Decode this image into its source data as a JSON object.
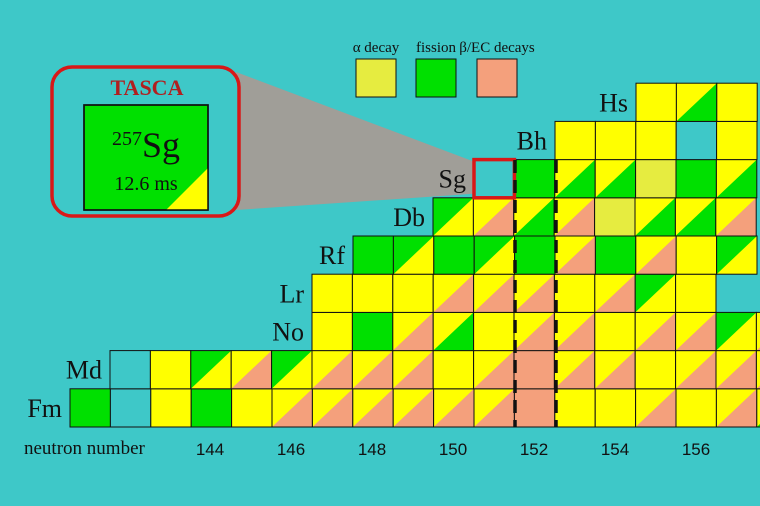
{
  "colors": {
    "background": "#3ec8c8",
    "alpha": "#ffff00",
    "fission": "#00e000",
    "beta_ec": "#f4a07c",
    "empty": "#3ec8c8",
    "light_alpha": "#e6ec40",
    "highlight": "#d81818",
    "zoom": "#a89a94"
  },
  "legend": [
    {
      "key": "alpha",
      "label": "α decay",
      "swatch": "light_alpha"
    },
    {
      "key": "fission",
      "label": "fission",
      "swatch": "fission"
    },
    {
      "key": "beta",
      "label": "β/EC decays",
      "swatch": "beta_ec"
    }
  ],
  "axis": {
    "label": "neutron number",
    "ticks": [
      "144",
      "146",
      "148",
      "150",
      "152",
      "154",
      "156"
    ]
  },
  "elements": [
    "Fm",
    "Md",
    "No",
    "Lr",
    "Rf",
    "Db",
    "Sg",
    "Bh",
    "Hs"
  ],
  "callout": {
    "facility": "TASCA",
    "mass": "257",
    "symbol": "Sg",
    "halflife": "12.6 ms"
  },
  "rows": [
    {
      "element": "Fm",
      "cells": [
        "G",
        "E",
        "Y",
        "G",
        "Y",
        "Y/O",
        "Y/O",
        "Y/O",
        "Y/O",
        "Y/O",
        "Y/O",
        "O",
        "Y",
        "Y",
        "Y/O",
        "Y",
        "Y/O",
        "Y/G"
      ]
    },
    {
      "element": "Md",
      "cells": [
        "E",
        "Y",
        "G/Y",
        "Y/O",
        "G/Y",
        "Y/O",
        "Y/O",
        "Y/O",
        "Y",
        "Y/O",
        "O",
        "Y/O",
        "Y/O",
        "Y",
        "Y/O",
        "Y/O",
        "Y/O"
      ]
    },
    {
      "element": "No",
      "cells": [
        "Y",
        "G",
        "Y/O",
        "Y/G",
        "Y",
        "Y/O",
        "Y/O",
        "Y",
        "Y/O",
        "Y/O",
        "G/Y",
        "Y/O"
      ]
    },
    {
      "element": "Lr",
      "cells": [
        "Y",
        "Y",
        "Y",
        "Y/O",
        "Y/O",
        "Y/O",
        "Y",
        "Y/O",
        "G/Y",
        "Y"
      ]
    },
    {
      "element": "Rf",
      "cells": [
        "G",
        "G/Y",
        "G",
        "G/Y",
        "G",
        "Y/O",
        "G",
        "Y/O",
        "Y",
        "G/Y"
      ]
    },
    {
      "element": "Db",
      "cells": [
        "G/Y",
        "Y/O",
        "Y/G",
        "Y/O",
        "L",
        "Y/G",
        "Y/G",
        "Y/O"
      ]
    },
    {
      "element": "Sg",
      "cells": [
        "H",
        "G",
        "Y/G",
        "Y/G",
        "L",
        "G",
        "Y/G"
      ]
    },
    {
      "element": "Bh",
      "cells": [
        "Y",
        "Y",
        "Y",
        "E",
        "Y"
      ]
    },
    {
      "element": "Hs",
      "cells": [
        "Y",
        "Y/G",
        "Y"
      ]
    }
  ]
}
